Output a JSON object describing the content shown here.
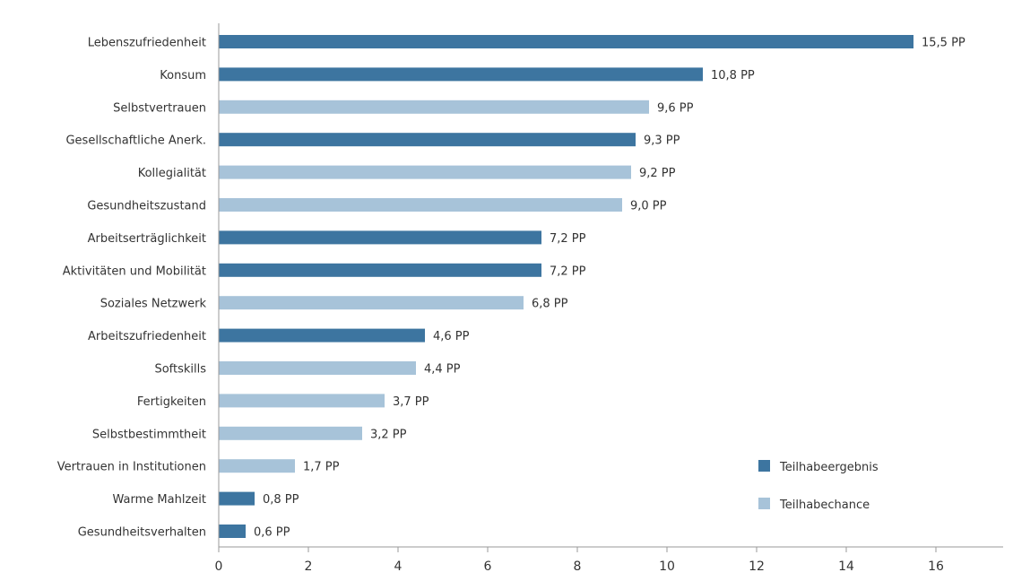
{
  "chart_data": {
    "type": "bar",
    "orientation": "horizontal",
    "categories": [
      "Lebenszufriedenheit",
      "Konsum",
      "Selbstvertrauen",
      "Gesellschaftliche Anerk.",
      "Kollegialität",
      "Gesundheitszustand",
      "Arbeitserträglichkeit",
      "Aktivitäten und Mobilität",
      "Soziales Netzwerk",
      "Arbeitszufriedenheit",
      "Softskills",
      "Fertigkeiten",
      "Selbstbestimmtheit",
      "Vertrauen in Institutionen",
      "Warme Mahlzeit",
      "Gesundheitsverhalten"
    ],
    "values": [
      15.5,
      10.8,
      9.6,
      9.3,
      9.2,
      9.0,
      7.2,
      7.2,
      6.8,
      4.6,
      4.4,
      3.7,
      3.2,
      1.7,
      0.8,
      0.6
    ],
    "value_labels": [
      "15,5 PP",
      "10,8 PP",
      "9,6 PP",
      "9,3 PP",
      "9,2 PP",
      "9,0 PP",
      "7,2 PP",
      "7,2 PP",
      "6,8 PP",
      "4,6 PP",
      "4,4 PP",
      "3,7 PP",
      "3,2 PP",
      "1,7 PP",
      "0,8 PP",
      "0,6 PP"
    ],
    "groups": [
      "Teilhabeergebnis",
      "Teilhabeergebnis",
      "Teilhabechance",
      "Teilhabeergebnis",
      "Teilhabechance",
      "Teilhabechance",
      "Teilhabeergebnis",
      "Teilhabeergebnis",
      "Teilhabechance",
      "Teilhabeergebnis",
      "Teilhabechance",
      "Teilhabechance",
      "Teilhabechance",
      "Teilhabechance",
      "Teilhabeergebnis",
      "Teilhabeergebnis"
    ],
    "legend": [
      {
        "name": "Teilhabeergebnis",
        "color": "#3d75a0"
      },
      {
        "name": "Teilhabechance",
        "color": "#a7c3d9"
      }
    ],
    "legend_position": "bottom-right",
    "x_ticks": [
      0,
      2,
      4,
      6,
      8,
      10,
      12,
      14,
      16
    ],
    "x_tick_labels": [
      "0",
      "2",
      "4",
      "6",
      "8",
      "10",
      "12",
      "14",
      "16"
    ],
    "xlim": [
      0,
      17.5
    ],
    "grid": false,
    "title": "",
    "xlabel": "",
    "ylabel": ""
  }
}
